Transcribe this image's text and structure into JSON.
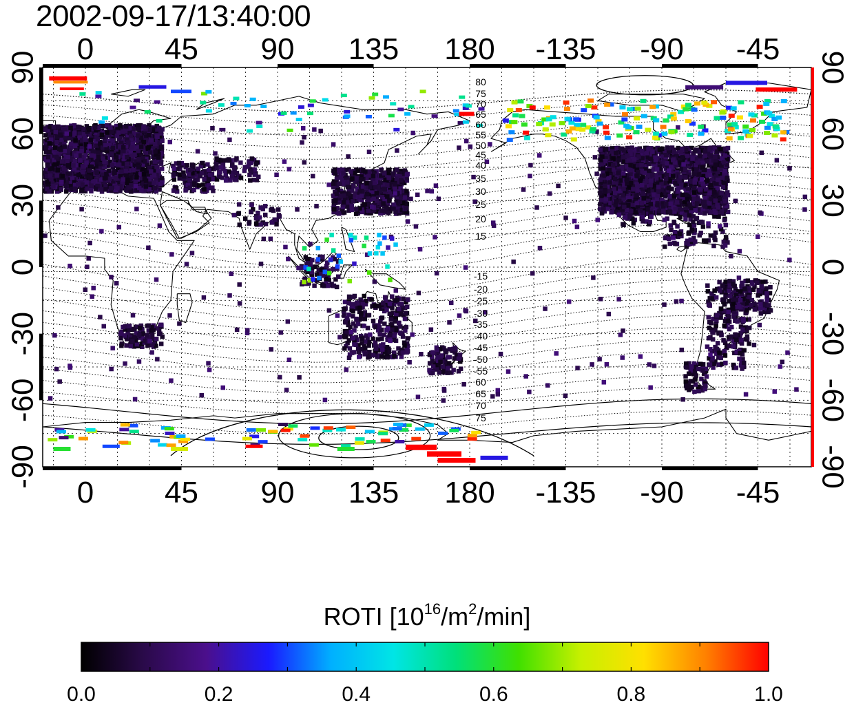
{
  "header": {
    "timestamp": "2002-09-17/13:40:00"
  },
  "map": {
    "x_tick_labels": [
      "0",
      "45",
      "90",
      "135",
      "180",
      "-135",
      "-90",
      "-45"
    ],
    "y_tick_labels_left": [
      "90",
      "60",
      "30",
      "0",
      "-30",
      "-60",
      "-90"
    ],
    "y_tick_labels_right": [
      "90",
      "60",
      "30",
      "0",
      "-30",
      "-60",
      "-90"
    ],
    "magnetic_lat_labels_north": [
      "80",
      "75",
      "70",
      "65",
      "60",
      "55",
      "50",
      "45",
      "40",
      "35",
      "30",
      "25",
      "20",
      "15"
    ],
    "magnetic_lat_labels_south": [
      "-15",
      "-20",
      "-25",
      "-30",
      "-35",
      "-40",
      "-45",
      "-50",
      "-55",
      "60",
      "65",
      "70",
      "75"
    ],
    "colors": {
      "frame": "#000000",
      "coast": "#000000",
      "grid": "#444444",
      "right_edge": "#ff0000"
    }
  },
  "colorbar": {
    "title_main": "ROTI  [10",
    "title_exp1": "16",
    "title_mid": "/m",
    "title_exp2": "2",
    "title_end": "/min]",
    "tick_labels": [
      "0.0",
      "0.2",
      "0.4",
      "0.6",
      "0.8",
      "1.0"
    ],
    "min": 0.0,
    "max": 1.0,
    "colormap": [
      "#000000",
      "#2a0a4a",
      "#4b0f8c",
      "#1a1aff",
      "#00b0ff",
      "#00e5e5",
      "#00e07a",
      "#40e000",
      "#c8f000",
      "#ffe000",
      "#ff8000",
      "#ff0000"
    ]
  },
  "chart_data": {
    "type": "heatmap",
    "title": "2002-09-17/13:40:00",
    "xlabel": "",
    "ylabel": "",
    "xlim": [
      -20,
      340
    ],
    "ylim": [
      -90,
      90
    ],
    "colorbar_label": "ROTI  [10^16/m^2/min]",
    "clim": [
      0.0,
      1.0
    ],
    "grid": true,
    "regions": [
      {
        "lon": [
          -20,
          35
        ],
        "lat": [
          35,
          65
        ],
        "roti": 0.05
      },
      {
        "lon": [
          240,
          300
        ],
        "lat": [
          25,
          55
        ],
        "roti": 0.05
      },
      {
        "lon": [
          115,
          150
        ],
        "lat": [
          25,
          45
        ],
        "roti": 0.06
      },
      {
        "lon": [
          115,
          150
        ],
        "lat": [
          -40,
          -10
        ],
        "roti": 0.06
      },
      {
        "lon": [
          290,
          310
        ],
        "lat": [
          -45,
          -5
        ],
        "roti": 0.05
      },
      {
        "lon": [
          15,
          35
        ],
        "lat": [
          -35,
          -25
        ],
        "roti": 0.05
      },
      {
        "lon": [
          200,
          320
        ],
        "lat": [
          60,
          75
        ],
        "roti": 0.5
      },
      {
        "lon": [
          -10,
          180
        ],
        "lat": [
          -80,
          -72
        ],
        "roti": 0.7
      },
      {
        "lon": [
          155,
          175
        ],
        "lat": [
          -85,
          -80
        ],
        "roti": 1.0
      },
      {
        "lon": [
          100,
          115
        ],
        "lat": [
          -5,
          5
        ],
        "roti": 0.45
      }
    ]
  }
}
